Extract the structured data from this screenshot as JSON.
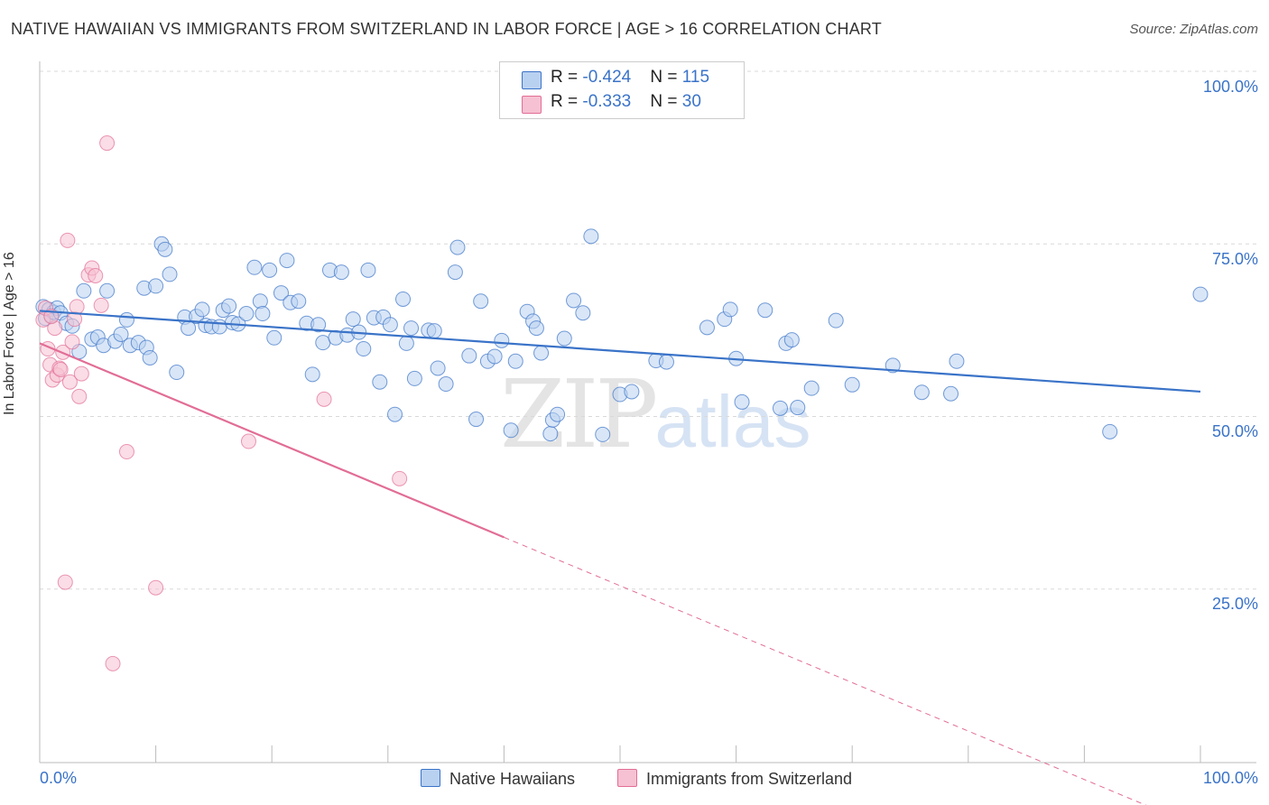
{
  "title": "NATIVE HAWAIIAN VS IMMIGRANTS FROM SWITZERLAND IN LABOR FORCE | AGE > 16 CORRELATION CHART",
  "source": "Source: ZipAtlas.com",
  "watermark": {
    "zip": "ZIP",
    "atlas": "atlas"
  },
  "colors": {
    "blue": "#3a73c8",
    "blue_fill": "#b9d1f0",
    "pink": "#e26d96",
    "pink_fill": "#f6c1d2",
    "grid": "#d9d9d9"
  },
  "legend": {
    "rows": [
      {
        "r_label": "R = ",
        "r_value": "-0.424",
        "n_label": "N = ",
        "n_value": "115"
      },
      {
        "r_label": "R = ",
        "r_value": "-0.333",
        "n_label": "N = ",
        "n_value": "30"
      }
    ],
    "bottom": [
      "Native Hawaiians",
      "Immigrants from Switzerland"
    ]
  },
  "chart_data": {
    "type": "scatter",
    "xlabel": "",
    "ylabel": "In Labor Force | Age > 16",
    "xlim": [
      0,
      100
    ],
    "ylim": [
      0,
      100
    ],
    "x_tick_labels": [
      "0.0%",
      "100.0%"
    ],
    "y_tick_labels": [
      "100.0%",
      "75.0%",
      "50.0%",
      "25.0%"
    ],
    "y_ticks": [
      100,
      75,
      50,
      25
    ],
    "grid": true,
    "legend_position": "top-center",
    "series": [
      {
        "name": "Native Hawaiians",
        "r": -0.424,
        "n": 115,
        "trend": {
          "x": [
            0,
            100
          ],
          "y": [
            65.3,
            53.6
          ]
        },
        "points": [
          [
            0.3,
            65.9
          ],
          [
            0.5,
            64.2
          ],
          [
            0.8,
            65.5
          ],
          [
            1.0,
            64.6
          ],
          [
            1.2,
            65.1
          ],
          [
            1.5,
            65.7
          ],
          [
            1.8,
            65.0
          ],
          [
            2.3,
            63.5
          ],
          [
            2.8,
            63.1
          ],
          [
            3.4,
            59.4
          ],
          [
            3.8,
            68.2
          ],
          [
            4.5,
            61.2
          ],
          [
            5.0,
            61.5
          ],
          [
            5.5,
            60.3
          ],
          [
            5.8,
            68.2
          ],
          [
            6.5,
            60.9
          ],
          [
            7.0,
            61.9
          ],
          [
            7.5,
            64.0
          ],
          [
            7.8,
            60.3
          ],
          [
            8.5,
            60.7
          ],
          [
            9.0,
            68.6
          ],
          [
            9.2,
            60.0
          ],
          [
            9.5,
            58.5
          ],
          [
            10.0,
            68.9
          ],
          [
            10.5,
            75.0
          ],
          [
            10.8,
            74.2
          ],
          [
            11.2,
            70.6
          ],
          [
            11.8,
            56.4
          ],
          [
            12.5,
            64.4
          ],
          [
            12.8,
            62.8
          ],
          [
            13.5,
            64.5
          ],
          [
            14.0,
            65.5
          ],
          [
            14.3,
            63.2
          ],
          [
            14.8,
            63.0
          ],
          [
            15.5,
            63.0
          ],
          [
            15.8,
            65.4
          ],
          [
            16.3,
            66.0
          ],
          [
            16.6,
            63.6
          ],
          [
            17.1,
            63.4
          ],
          [
            17.8,
            64.9
          ],
          [
            18.5,
            71.6
          ],
          [
            19.0,
            66.7
          ],
          [
            19.2,
            64.9
          ],
          [
            19.8,
            71.2
          ],
          [
            20.2,
            61.4
          ],
          [
            20.8,
            67.9
          ],
          [
            21.3,
            72.6
          ],
          [
            21.6,
            66.5
          ],
          [
            22.3,
            66.7
          ],
          [
            23.0,
            63.5
          ],
          [
            23.5,
            56.1
          ],
          [
            24.0,
            63.3
          ],
          [
            24.4,
            60.7
          ],
          [
            25.0,
            71.2
          ],
          [
            25.5,
            61.4
          ],
          [
            26.0,
            70.9
          ],
          [
            26.5,
            61.8
          ],
          [
            27.0,
            64.1
          ],
          [
            27.5,
            62.2
          ],
          [
            27.9,
            59.8
          ],
          [
            28.3,
            71.2
          ],
          [
            28.8,
            64.3
          ],
          [
            29.3,
            55.0
          ],
          [
            29.6,
            64.4
          ],
          [
            30.2,
            63.3
          ],
          [
            30.6,
            50.3
          ],
          [
            31.3,
            67.0
          ],
          [
            31.6,
            60.6
          ],
          [
            32.0,
            62.8
          ],
          [
            32.3,
            55.5
          ],
          [
            33.5,
            62.5
          ],
          [
            34.0,
            62.4
          ],
          [
            34.3,
            57.0
          ],
          [
            35.0,
            54.7
          ],
          [
            35.8,
            70.9
          ],
          [
            36.0,
            74.5
          ],
          [
            37.0,
            58.8
          ],
          [
            37.6,
            49.6
          ],
          [
            38.0,
            66.7
          ],
          [
            38.6,
            58.0
          ],
          [
            39.2,
            58.7
          ],
          [
            39.8,
            61.0
          ],
          [
            40.6,
            48.0
          ],
          [
            41.0,
            58.0
          ],
          [
            42.0,
            65.2
          ],
          [
            42.5,
            63.8
          ],
          [
            42.8,
            62.8
          ],
          [
            43.2,
            59.2
          ],
          [
            44.0,
            47.5
          ],
          [
            44.2,
            49.5
          ],
          [
            44.6,
            50.3
          ],
          [
            45.2,
            61.3
          ],
          [
            46.0,
            66.8
          ],
          [
            46.8,
            65.0
          ],
          [
            47.5,
            76.1
          ],
          [
            48.5,
            47.4
          ],
          [
            50.0,
            53.2
          ],
          [
            51.0,
            53.6
          ],
          [
            53.1,
            58.1
          ],
          [
            54.0,
            57.9
          ],
          [
            57.5,
            62.9
          ],
          [
            59.0,
            64.1
          ],
          [
            59.5,
            65.5
          ],
          [
            60.0,
            58.4
          ],
          [
            60.5,
            52.1
          ],
          [
            62.5,
            65.4
          ],
          [
            63.8,
            51.2
          ],
          [
            64.3,
            60.6
          ],
          [
            64.8,
            61.1
          ],
          [
            65.3,
            51.3
          ],
          [
            66.5,
            54.1
          ],
          [
            68.6,
            63.9
          ],
          [
            70.0,
            54.6
          ],
          [
            73.5,
            57.4
          ],
          [
            76.0,
            53.5
          ],
          [
            78.5,
            53.3
          ],
          [
            79.0,
            58.0
          ],
          [
            92.2,
            47.8
          ],
          [
            100.0,
            67.7
          ]
        ]
      },
      {
        "name": "Immigrants from Switzerland",
        "r": -0.333,
        "n": 30,
        "trend": {
          "x": [
            0,
            40
          ],
          "y": [
            60.6,
            32.5
          ]
        },
        "trend_dashed": {
          "x": [
            40,
            100
          ],
          "y": [
            32.5,
            -9.6
          ]
        },
        "points": [
          [
            0.3,
            64.0
          ],
          [
            0.5,
            65.7
          ],
          [
            0.7,
            59.8
          ],
          [
            0.9,
            57.5
          ],
          [
            1.1,
            55.3
          ],
          [
            1.3,
            62.8
          ],
          [
            1.5,
            56.0
          ],
          [
            1.7,
            57.0
          ],
          [
            1.8,
            56.8
          ],
          [
            2.0,
            59.3
          ],
          [
            2.2,
            26.0
          ],
          [
            2.4,
            75.5
          ],
          [
            2.6,
            55.0
          ],
          [
            2.8,
            60.8
          ],
          [
            3.0,
            64.1
          ],
          [
            3.2,
            65.9
          ],
          [
            3.4,
            52.9
          ],
          [
            3.6,
            56.2
          ],
          [
            4.2,
            70.5
          ],
          [
            4.5,
            71.5
          ],
          [
            4.8,
            70.4
          ],
          [
            5.3,
            66.1
          ],
          [
            5.8,
            89.6
          ],
          [
            6.3,
            14.2
          ],
          [
            7.5,
            44.9
          ],
          [
            10.0,
            25.2
          ],
          [
            18.0,
            46.4
          ],
          [
            24.5,
            52.5
          ],
          [
            31.0,
            41.0
          ],
          [
            1.0,
            64.5
          ]
        ]
      }
    ]
  }
}
